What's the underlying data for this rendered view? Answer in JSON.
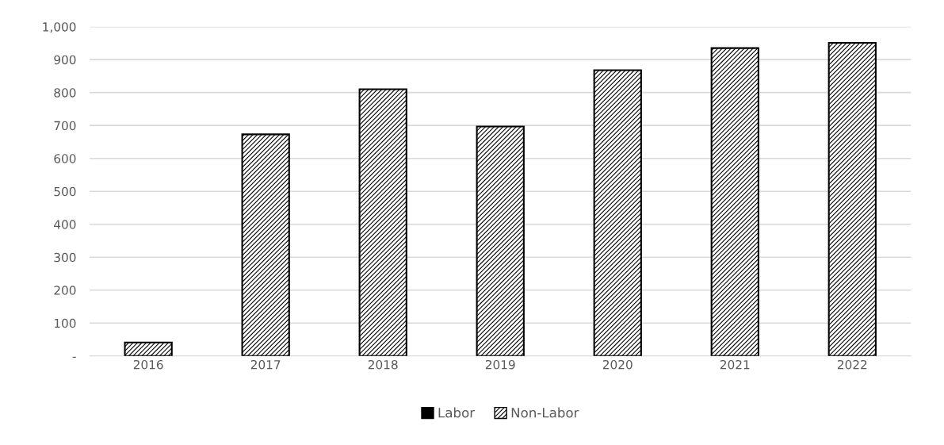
{
  "chart_data": {
    "type": "bar",
    "stacked": true,
    "categories": [
      "2016",
      "2017",
      "2018",
      "2019",
      "2020",
      "2021",
      "2022"
    ],
    "series": [
      {
        "name": "Labor",
        "color": "#000000",
        "values": [
          0,
          0,
          0,
          0,
          0,
          0,
          0
        ]
      },
      {
        "name": "Non-Labor",
        "color": "#000000",
        "values": [
          41,
          673,
          810,
          697,
          868,
          935,
          951
        ]
      }
    ],
    "ylim": [
      0,
      1000
    ],
    "yticks": [
      {
        "value": 0,
        "label": "-"
      },
      100,
      200,
      300,
      400,
      500,
      600,
      700,
      800,
      900,
      {
        "value": 1000,
        "label": "1,000"
      }
    ],
    "grid": "y",
    "legend": "bottom"
  }
}
